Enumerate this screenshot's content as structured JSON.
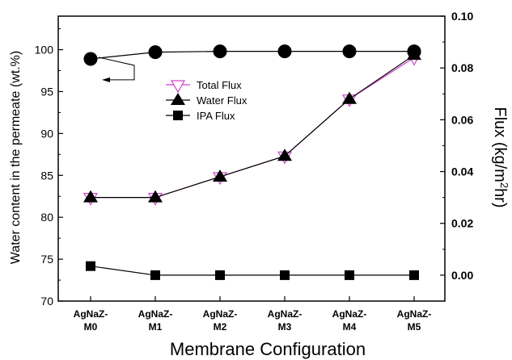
{
  "chart_data": {
    "type": "line",
    "xlabel": "Membrane Configuration",
    "ylabel_left": "Water content in the permeate (wt.%)",
    "ylabel_right_prefix": "Flux (kg/m",
    "ylabel_right_sup": "2",
    "ylabel_right_suffix": "hr)",
    "categories": [
      [
        "AgNaZ-",
        "M0"
      ],
      [
        "AgNaZ-",
        "M1"
      ],
      [
        "AgNaZ-",
        "M2"
      ],
      [
        "AgNaZ-",
        "M3"
      ],
      [
        "AgNaZ-",
        "M4"
      ],
      [
        "AgNaZ-",
        "M5"
      ]
    ],
    "ylim_left": [
      70,
      104
    ],
    "yticks_left": [
      "70",
      "75",
      "80",
      "85",
      "90",
      "95",
      "100"
    ],
    "ylim_right": [
      -0.01,
      0.1
    ],
    "yticks_right": [
      "0.00",
      "0.02",
      "0.04",
      "0.06",
      "0.08",
      "0.10"
    ],
    "legend": [
      "Total Flux",
      "Water Flux",
      "IPA Flux"
    ],
    "series": [
      {
        "name": "Water content",
        "axis": "left",
        "marker": "circle",
        "color": "#000000",
        "values": [
          98.9,
          99.7,
          99.8,
          99.8,
          99.8,
          99.8
        ]
      },
      {
        "name": "Total Flux",
        "axis": "right",
        "marker": "triangle-down",
        "color": "#cc44cc",
        "values": [
          0.03,
          0.03,
          0.038,
          0.046,
          0.068,
          0.084
        ]
      },
      {
        "name": "Water Flux",
        "axis": "right",
        "marker": "triangle-up",
        "color": "#000000",
        "values": [
          0.03,
          0.03,
          0.038,
          0.046,
          0.068,
          0.085
        ]
      },
      {
        "name": "IPA Flux",
        "axis": "right",
        "marker": "square",
        "color": "#000000",
        "values": [
          0.0035,
          0.0,
          0.0,
          0.0,
          0.0,
          0.0
        ]
      }
    ]
  }
}
